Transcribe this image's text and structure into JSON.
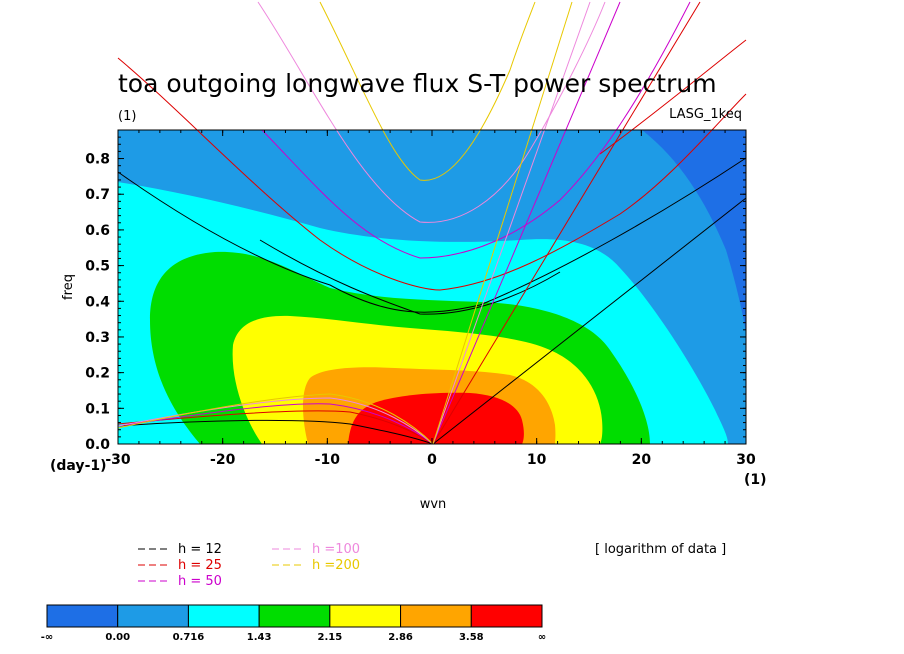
{
  "chart_data": {
    "type": "heatmap",
    "title": "toa outgoing longwave flux S-T power spectrum",
    "subtitle": "(1)",
    "model_label": "LASG_1keq",
    "xlabel": "wvn",
    "ylabel": "freq",
    "x_unit": "(1)",
    "y_unit": "(day-1)",
    "xlim": [
      -30,
      30
    ],
    "ylim": [
      0.0,
      0.88
    ],
    "x_ticks": [
      "-30",
      "-20",
      "-10",
      "0",
      "10",
      "20",
      "30"
    ],
    "y_ticks": [
      "0.0",
      "0.1",
      "0.2",
      "0.3",
      "0.4",
      "0.5",
      "0.6",
      "0.7",
      "0.8"
    ],
    "note": "[ logarithm of data ]",
    "colorbar": {
      "labels": [
        "-∞",
        "0.00",
        "0.716",
        "1.43",
        "2.15",
        "2.86",
        "3.58",
        "∞"
      ],
      "colors": [
        "#1e6fe6",
        "#1e9be6",
        "#00ffff",
        "#00dd00",
        "#ffff00",
        "#ffa500",
        "#ff0000"
      ]
    },
    "dispersion_curves": [
      {
        "name": "h = 12",
        "color": "#000000"
      },
      {
        "name": "h = 25",
        "color": "#dd0000"
      },
      {
        "name": "h = 50",
        "color": "#cc00cc"
      },
      {
        "name": "h =100",
        "color": "#ee88dd"
      },
      {
        "name": "h =200",
        "color": "#e8c800"
      }
    ]
  }
}
